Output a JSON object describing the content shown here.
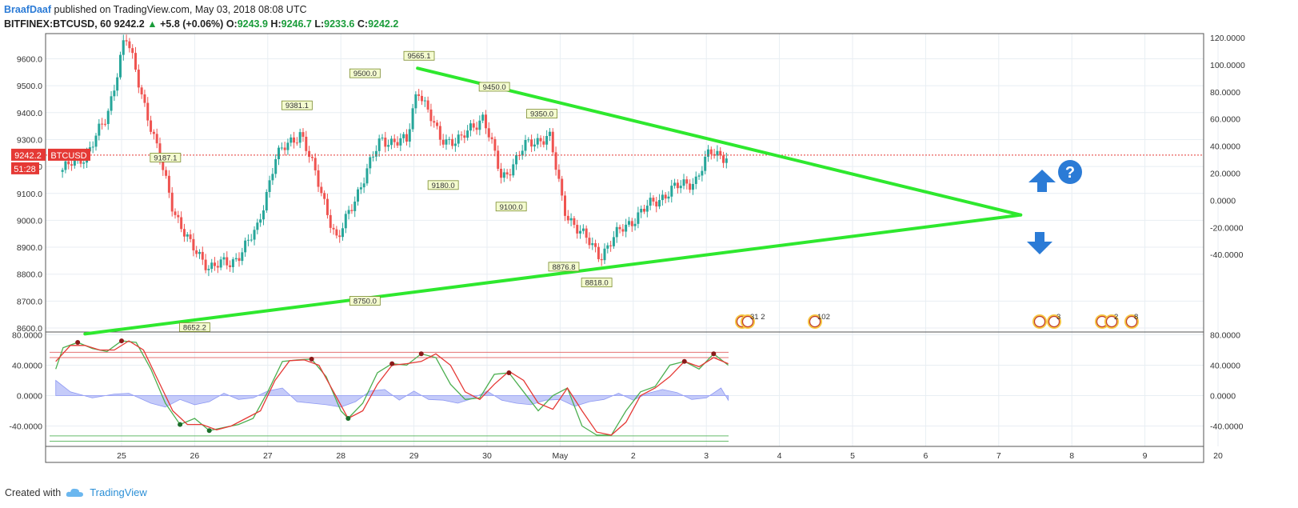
{
  "header": {
    "user": "BraafDaaf",
    "published": "published on TradingView.com, May 03, 2018 08:08 UTC",
    "symbol": "BITFINEX:BTCUSD, 60",
    "last": "9242.2",
    "change": "+5.8 (+0.06%)",
    "o_label": "O:",
    "o": "9243.9",
    "h_label": "H:",
    "h": "9246.7",
    "l_label": "L:",
    "l": "9233.6",
    "c_label": "C:",
    "c": "9242.2"
  },
  "footer": {
    "created": "Created with",
    "brand": "TradingView"
  },
  "price_badge": {
    "price": "9242.2",
    "symbol": "BTCUSD",
    "countdown": "51:28"
  },
  "colors": {
    "up": "#26a69a",
    "down": "#ef5350",
    "trend": "#2ee82e",
    "stoch_k": "#4caf50",
    "stoch_d": "#e53935",
    "histogram": "#9fa8f5",
    "arrows": "#2b7bd6"
  },
  "chart_data": [
    {
      "type": "candlestick",
      "title": "",
      "ylim": [
        8580,
        9720
      ],
      "y_ticks": [
        "9600.0",
        "9500.0",
        "9400.0",
        "9300.0",
        "9200.0",
        "9100.0",
        "9000.0",
        "8900.0",
        "8800.0",
        "8700.0",
        "8600.0"
      ],
      "right_axis_ticks": [
        "120.0000",
        "100.0000",
        "80.0000",
        "60.0000",
        "40.0000",
        "20.0000",
        "0.0000",
        "-20.0000",
        "-40.0000"
      ],
      "x_ticks": [
        "25",
        "26",
        "27",
        "28",
        "29",
        "30",
        "May",
        "2",
        "3",
        "4",
        "5",
        "6",
        "7",
        "8",
        "9",
        "20"
      ],
      "price_series": [
        [
          24.15,
          9180
        ],
        [
          24.5,
          9240
        ],
        [
          24.8,
          9380
        ],
        [
          25.05,
          9690
        ],
        [
          25.4,
          9350
        ],
        [
          25.7,
          9050
        ],
        [
          25.95,
          8900
        ],
        [
          26.2,
          8830
        ],
        [
          26.5,
          8840
        ],
        [
          26.85,
          8960
        ],
        [
          27.1,
          9230
        ],
        [
          27.45,
          9330
        ],
        [
          27.8,
          9050
        ],
        [
          27.95,
          8920
        ],
        [
          28.25,
          9120
        ],
        [
          28.55,
          9300
        ],
        [
          28.9,
          9290
        ],
        [
          29.05,
          9500
        ],
        [
          29.35,
          9300
        ],
        [
          29.65,
          9300
        ],
        [
          29.95,
          9390
        ],
        [
          30.2,
          9150
        ],
        [
          30.5,
          9270
        ],
        [
          30.85,
          9320
        ],
        [
          31.05,
          9040
        ],
        [
          31.35,
          8930
        ],
        [
          31.55,
          8870
        ],
        [
          31.85,
          8970
        ],
        [
          32.2,
          9050
        ],
        [
          32.5,
          9110
        ],
        [
          32.85,
          9150
        ],
        [
          33.05,
          9250
        ],
        [
          33.3,
          9240
        ]
      ],
      "pivot_labels": [
        {
          "x": 25.6,
          "label": "9187.1",
          "value": 9187.1
        },
        {
          "x": 26.0,
          "label": "8652.2",
          "value": 8652.2
        },
        {
          "x": 27.4,
          "label": "9381.1",
          "value": 9381.1
        },
        {
          "x": 28.33,
          "label": "9500.0",
          "value": 9500.0
        },
        {
          "x": 28.33,
          "label": "8750.0",
          "value": 8750.0
        },
        {
          "x": 29.07,
          "label": "9565.1",
          "value": 9565.1
        },
        {
          "x": 29.4,
          "label": "9180.0",
          "value": 9180.0
        },
        {
          "x": 30.1,
          "label": "9450.0",
          "value": 9450.0
        },
        {
          "x": 30.33,
          "label": "9100.0",
          "value": 9100.0
        },
        {
          "x": 30.75,
          "label": "9350.0",
          "value": 9350.0
        },
        {
          "x": 31.05,
          "label": "8876.8",
          "value": 8876.8
        },
        {
          "x": 31.5,
          "label": "8818.0",
          "value": 8818.0
        }
      ],
      "last_price": 9242.2,
      "trendlines": [
        {
          "name": "upper",
          "from": [
            29.05,
            9565
          ],
          "to": [
            37.3,
            9020
          ]
        },
        {
          "name": "lower",
          "from": [
            24.5,
            8578
          ],
          "to": [
            37.3,
            9020
          ]
        }
      ],
      "event_markers": [
        "31 2",
        "102",
        "3",
        "2",
        "8"
      ]
    },
    {
      "type": "line",
      "title": "",
      "ylim": [
        -64,
        80
      ],
      "y_ticks": [
        "80.0000",
        "40.0000",
        "0.0000",
        "-40.0000"
      ],
      "series": [
        {
          "values": [
            [
              24.1,
              35
            ],
            [
              24.2,
              63
            ],
            [
              24.4,
              70
            ],
            [
              24.6,
              62
            ],
            [
              24.8,
              58
            ],
            [
              25.0,
              72
            ],
            [
              25.2,
              70
            ],
            [
              25.4,
              35
            ],
            [
              25.6,
              -10
            ],
            [
              25.8,
              -38
            ],
            [
              26.0,
              -30
            ],
            [
              26.2,
              -46
            ],
            [
              26.4,
              -42
            ],
            [
              26.6,
              -38
            ],
            [
              26.8,
              -30
            ],
            [
              27.0,
              5
            ],
            [
              27.2,
              45
            ],
            [
              27.4,
              47
            ],
            [
              27.6,
              48
            ],
            [
              27.8,
              25
            ],
            [
              28.0,
              -20
            ],
            [
              28.1,
              -30
            ],
            [
              28.3,
              -10
            ],
            [
              28.5,
              30
            ],
            [
              28.7,
              42
            ],
            [
              28.9,
              40
            ],
            [
              29.1,
              55
            ],
            [
              29.3,
              50
            ],
            [
              29.5,
              15
            ],
            [
              29.7,
              -5
            ],
            [
              29.9,
              -3
            ],
            [
              30.1,
              28
            ],
            [
              30.3,
              30
            ],
            [
              30.5,
              5
            ],
            [
              30.7,
              -20
            ],
            [
              30.9,
              0
            ],
            [
              31.1,
              10
            ],
            [
              31.3,
              -40
            ],
            [
              31.5,
              -52
            ],
            [
              31.7,
              -52
            ],
            [
              31.9,
              -20
            ],
            [
              32.1,
              5
            ],
            [
              32.3,
              12
            ],
            [
              32.5,
              40
            ],
            [
              32.7,
              45
            ],
            [
              32.9,
              35
            ],
            [
              33.1,
              55
            ],
            [
              33.3,
              40
            ]
          ]
        },
        {
          "values": [
            [
              24.1,
              45
            ],
            [
              24.3,
              66
            ],
            [
              24.5,
              66
            ],
            [
              24.7,
              60
            ],
            [
              24.9,
              60
            ],
            [
              25.1,
              72
            ],
            [
              25.3,
              60
            ],
            [
              25.5,
              20
            ],
            [
              25.7,
              -20
            ],
            [
              25.9,
              -38
            ],
            [
              26.1,
              -38
            ],
            [
              26.3,
              -45
            ],
            [
              26.5,
              -40
            ],
            [
              26.7,
              -30
            ],
            [
              26.9,
              -20
            ],
            [
              27.1,
              20
            ],
            [
              27.3,
              46
            ],
            [
              27.5,
              47
            ],
            [
              27.7,
              40
            ],
            [
              27.9,
              5
            ],
            [
              28.1,
              -30
            ],
            [
              28.3,
              -20
            ],
            [
              28.5,
              15
            ],
            [
              28.7,
              40
            ],
            [
              28.9,
              42
            ],
            [
              29.1,
              45
            ],
            [
              29.3,
              55
            ],
            [
              29.5,
              40
            ],
            [
              29.7,
              5
            ],
            [
              29.9,
              -5
            ],
            [
              30.1,
              15
            ],
            [
              30.3,
              32
            ],
            [
              30.5,
              20
            ],
            [
              30.7,
              -10
            ],
            [
              30.9,
              -18
            ],
            [
              31.1,
              10
            ],
            [
              31.3,
              -20
            ],
            [
              31.5,
              -48
            ],
            [
              31.7,
              -52
            ],
            [
              31.9,
              -35
            ],
            [
              32.1,
              0
            ],
            [
              32.3,
              10
            ],
            [
              32.5,
              25
            ],
            [
              32.7,
              45
            ],
            [
              32.9,
              38
            ],
            [
              33.1,
              50
            ],
            [
              33.3,
              42
            ]
          ]
        }
      ],
      "levels": [
        57,
        50,
        -53,
        -60
      ],
      "histogram": [
        [
          24.1,
          20
        ],
        [
          24.3,
          5
        ],
        [
          24.6,
          -3
        ],
        [
          24.9,
          2
        ],
        [
          25.1,
          3
        ],
        [
          25.4,
          -10
        ],
        [
          25.6,
          -15
        ],
        [
          25.8,
          -5
        ],
        [
          26.0,
          -12
        ],
        [
          26.2,
          -8
        ],
        [
          26.4,
          3
        ],
        [
          26.6,
          -5
        ],
        [
          26.8,
          -3
        ],
        [
          27.0,
          6
        ],
        [
          27.2,
          10
        ],
        [
          27.4,
          -8
        ],
        [
          27.6,
          -10
        ],
        [
          27.8,
          -12
        ],
        [
          28.0,
          -15
        ],
        [
          28.2,
          -8
        ],
        [
          28.4,
          6
        ],
        [
          28.6,
          8
        ],
        [
          28.8,
          -6
        ],
        [
          29.0,
          6
        ],
        [
          29.2,
          -5
        ],
        [
          29.4,
          -6
        ],
        [
          29.6,
          -10
        ],
        [
          29.8,
          -4
        ],
        [
          30.0,
          6
        ],
        [
          30.2,
          -6
        ],
        [
          30.4,
          -10
        ],
        [
          30.6,
          -12
        ],
        [
          30.8,
          -6
        ],
        [
          31.0,
          -5
        ],
        [
          31.2,
          -14
        ],
        [
          31.4,
          -8
        ],
        [
          31.6,
          -5
        ],
        [
          31.8,
          3
        ],
        [
          32.0,
          -6
        ],
        [
          32.2,
          3
        ],
        [
          32.4,
          8
        ],
        [
          32.6,
          4
        ],
        [
          32.8,
          -5
        ],
        [
          33.0,
          -3
        ],
        [
          33.2,
          10
        ],
        [
          33.3,
          -6
        ]
      ]
    }
  ]
}
